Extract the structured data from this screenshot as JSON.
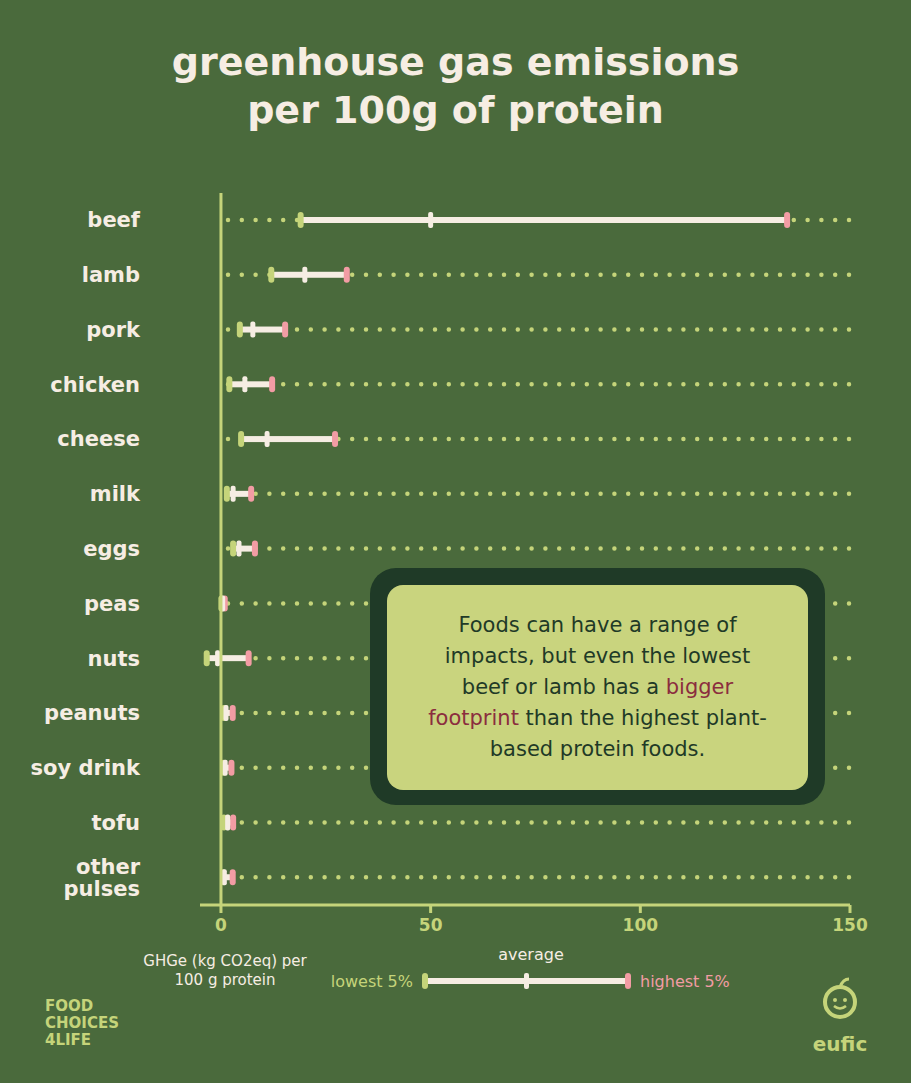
{
  "chart_data": {
    "type": "range_bar",
    "orientation": "horizontal",
    "title": [
      "greenhouse gas emissions",
      "per 100g of protein"
    ],
    "categories": [
      "beef",
      "lamb",
      "pork",
      "chicken",
      "cheese",
      "milk",
      "eggs",
      "peas",
      "nuts",
      "peanuts",
      "soy drink",
      "tofu",
      "other pulses"
    ],
    "series": [
      {
        "name": "lowest 5%",
        "color": "#c5d47a",
        "values": [
          19,
          12,
          4.5,
          2,
          4.8,
          1.4,
          2.9,
          0.1,
          -3.4,
          0.7,
          0.6,
          0.7,
          0.5
        ]
      },
      {
        "name": "average",
        "color": "#f6ede3",
        "values": [
          50,
          20,
          7.6,
          5.7,
          11,
          2.9,
          4.3,
          0.4,
          -0.8,
          1.2,
          1.0,
          1.6,
          0.8
        ]
      },
      {
        "name": "highest 5%",
        "color": "#f29ca4",
        "values": [
          135,
          30,
          15.3,
          12.2,
          27.2,
          7.2,
          8.1,
          0.9,
          6.6,
          2.8,
          2.5,
          2.9,
          2.8
        ]
      }
    ],
    "xlim": [
      -5,
      150
    ],
    "xticks": [
      0,
      50,
      100,
      150
    ],
    "x_label": "GHGe (kg CO2eq) per 100 g protein",
    "annotation": [
      "Foods can have a range of impacts, but even the lowest beef or lamb has a ",
      "bigger footprint",
      " than the highest plant-based protein foods."
    ],
    "logos": {
      "left": [
        "FOOD",
        "CHOICES",
        "4LIFE"
      ],
      "right": "eufic"
    }
  }
}
